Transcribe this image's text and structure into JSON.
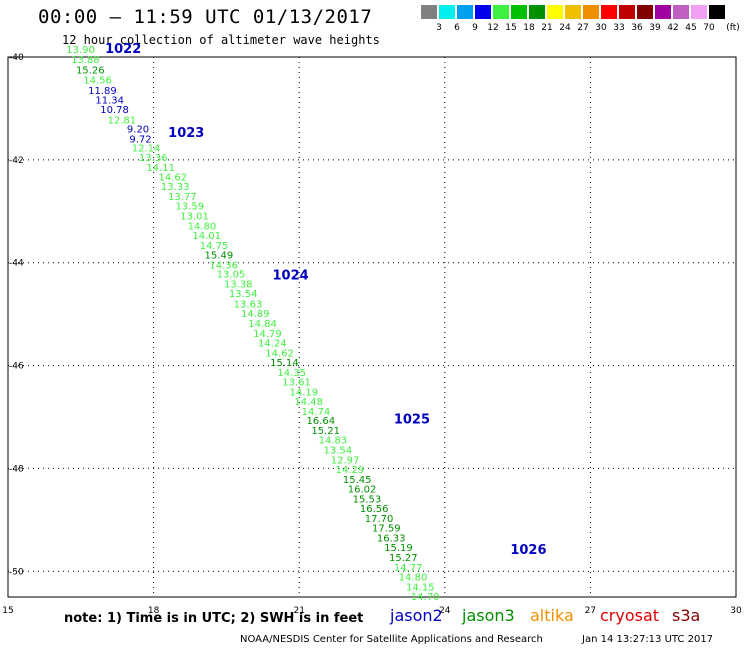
{
  "title": "00:00 – 11:59 UTC 01/13/2017",
  "subtitle": "12 hour collection of altimeter wave heights",
  "colorbar": {
    "unit": "(ft)",
    "ticks": [
      "3",
      "6",
      "9",
      "12",
      "15",
      "18",
      "21",
      "24",
      "27",
      "30",
      "33",
      "36",
      "39",
      "42",
      "45",
      "70"
    ],
    "colors": [
      "#808080",
      "#00f0f0",
      "#00a0f0",
      "#0000f0",
      "#40f040",
      "#00c000",
      "#009000",
      "#ffff00",
      "#f0c000",
      "#f09000",
      "#ff0000",
      "#c00000",
      "#800000",
      "#a000a0",
      "#c060c0",
      "#f0a0f0",
      "#000000"
    ]
  },
  "axes": {
    "x_ticks": [
      "15",
      "18",
      "21",
      "24",
      "27",
      "30"
    ],
    "y_ticks": [
      "-40",
      "-42",
      "-44",
      "-46",
      "-48",
      "-50"
    ]
  },
  "track_labels": [
    {
      "text": "1022",
      "lon": 17.0,
      "lat": -39.92
    },
    {
      "text": "1023",
      "lon": 18.3,
      "lat": -41.56
    },
    {
      "text": "1024",
      "lon": 20.45,
      "lat": -44.33
    },
    {
      "text": "1025",
      "lon": 22.95,
      "lat": -47.13
    },
    {
      "text": "1026",
      "lon": 25.35,
      "lat": -49.66
    }
  ],
  "measurements": [
    {
      "v": "13.90",
      "sat": "jason3",
      "lon": 16.2,
      "lat": -39.92
    },
    {
      "v": "13.88",
      "sat": "jason3",
      "lon": 16.3,
      "lat": -40.12
    },
    {
      "v": "15.26",
      "sat": "jason3",
      "lon": 16.4,
      "lat": -40.32
    },
    {
      "v": "14.56",
      "sat": "jason3",
      "lon": 16.55,
      "lat": -40.52
    },
    {
      "v": "11.89",
      "sat": "jason2",
      "lon": 16.65,
      "lat": -40.72
    },
    {
      "v": "11.34",
      "sat": "jason2",
      "lon": 16.8,
      "lat": -40.9
    },
    {
      "v": "10.78",
      "sat": "jason2",
      "lon": 16.9,
      "lat": -41.09
    },
    {
      "v": "12.81",
      "sat": "jason3",
      "lon": 17.05,
      "lat": -41.29
    },
    {
      "v": "9.20",
      "sat": "jason2",
      "lon": 17.45,
      "lat": -41.47
    },
    {
      "v": "9.72",
      "sat": "jason2",
      "lon": 17.5,
      "lat": -41.66
    },
    {
      "v": "12.14",
      "sat": "jason3",
      "lon": 17.55,
      "lat": -41.84
    },
    {
      "v": "13.36",
      "sat": "jason3",
      "lon": 17.7,
      "lat": -42.02
    },
    {
      "v": "14.11",
      "sat": "jason3",
      "lon": 17.85,
      "lat": -42.22
    },
    {
      "v": "14.62",
      "sat": "jason3",
      "lon": 18.1,
      "lat": -42.4
    },
    {
      "v": "13.33",
      "sat": "jason3",
      "lon": 18.15,
      "lat": -42.59
    },
    {
      "v": "13.77",
      "sat": "jason3",
      "lon": 18.3,
      "lat": -42.78
    },
    {
      "v": "13.59",
      "sat": "jason3",
      "lon": 18.45,
      "lat": -42.97
    },
    {
      "v": "13.01",
      "sat": "jason3",
      "lon": 18.55,
      "lat": -43.16
    },
    {
      "v": "14.80",
      "sat": "jason3",
      "lon": 18.7,
      "lat": -43.35
    },
    {
      "v": "14.01",
      "sat": "jason3",
      "lon": 18.8,
      "lat": -43.54
    },
    {
      "v": "14.75",
      "sat": "jason3",
      "lon": 18.95,
      "lat": -43.73
    },
    {
      "v": "15.49",
      "sat": "jason3",
      "lon": 19.05,
      "lat": -43.92
    },
    {
      "v": "14.36",
      "sat": "jason3",
      "lon": 19.15,
      "lat": -44.11
    },
    {
      "v": "13.05",
      "sat": "jason3",
      "lon": 19.3,
      "lat": -44.29
    },
    {
      "v": "13.38",
      "sat": "jason3",
      "lon": 19.45,
      "lat": -44.48
    },
    {
      "v": "13.54",
      "sat": "jason3",
      "lon": 19.55,
      "lat": -44.67
    },
    {
      "v": "13.63",
      "sat": "jason3",
      "lon": 19.65,
      "lat": -44.87
    },
    {
      "v": "14.89",
      "sat": "jason3",
      "lon": 19.8,
      "lat": -45.06
    },
    {
      "v": "14.84",
      "sat": "jason3",
      "lon": 19.95,
      "lat": -45.25
    },
    {
      "v": "14.79",
      "sat": "jason3",
      "lon": 20.05,
      "lat": -45.44
    },
    {
      "v": "14.24",
      "sat": "jason3",
      "lon": 20.15,
      "lat": -45.63
    },
    {
      "v": "14.62",
      "sat": "jason3",
      "lon": 20.3,
      "lat": -45.82
    },
    {
      "v": "15.14",
      "sat": "jason3",
      "lon": 20.4,
      "lat": -46.01
    },
    {
      "v": "14.35",
      "sat": "jason3",
      "lon": 20.55,
      "lat": -46.2
    },
    {
      "v": "13.61",
      "sat": "jason3",
      "lon": 20.65,
      "lat": -46.39
    },
    {
      "v": "14.19",
      "sat": "jason3",
      "lon": 20.8,
      "lat": -46.58
    },
    {
      "v": "14.48",
      "sat": "jason3",
      "lon": 20.9,
      "lat": -46.77
    },
    {
      "v": "14.74",
      "sat": "jason3",
      "lon": 21.05,
      "lat": -46.96
    },
    {
      "v": "16.64",
      "sat": "jason3",
      "lon": 21.15,
      "lat": -47.14
    },
    {
      "v": "15.21",
      "sat": "jason3",
      "lon": 21.25,
      "lat": -47.33
    },
    {
      "v": "14.83",
      "sat": "jason3",
      "lon": 21.4,
      "lat": -47.52
    },
    {
      "v": "13.54",
      "sat": "jason3",
      "lon": 21.5,
      "lat": -47.71
    },
    {
      "v": "12.97",
      "sat": "jason3",
      "lon": 21.65,
      "lat": -47.9
    },
    {
      "v": "14.29",
      "sat": "jason3",
      "lon": 21.75,
      "lat": -48.09
    },
    {
      "v": "15.45",
      "sat": "jason3",
      "lon": 21.9,
      "lat": -48.28
    },
    {
      "v": "16.02",
      "sat": "jason3",
      "lon": 22.0,
      "lat": -48.47
    },
    {
      "v": "15.53",
      "sat": "jason3",
      "lon": 22.1,
      "lat": -48.66
    },
    {
      "v": "16.56",
      "sat": "jason3",
      "lon": 22.25,
      "lat": -48.85
    },
    {
      "v": "17.70",
      "sat": "jason3",
      "lon": 22.35,
      "lat": -49.04
    },
    {
      "v": "17.59",
      "sat": "jason3",
      "lon": 22.5,
      "lat": -49.23
    },
    {
      "v": "16.33",
      "sat": "jason3",
      "lon": 22.6,
      "lat": -49.42
    },
    {
      "v": "15.19",
      "sat": "jason3",
      "lon": 22.75,
      "lat": -49.61
    },
    {
      "v": "15.27",
      "sat": "jason3",
      "lon": 22.85,
      "lat": -49.8
    },
    {
      "v": "14.77",
      "sat": "jason3",
      "lon": 22.95,
      "lat": -49.99
    },
    {
      "v": "14.80",
      "sat": "jason3",
      "lon": 23.05,
      "lat": -50.18
    },
    {
      "v": "14.15",
      "sat": "jason3",
      "lon": 23.2,
      "lat": -50.37
    },
    {
      "v": "14.70",
      "sat": "jason3",
      "lon": 23.3,
      "lat": -50.56
    }
  ],
  "note": "note:  1) Time is in UTC;  2) SWH is in feet",
  "satellites": [
    {
      "name": "jason2",
      "color": "#0000c0"
    },
    {
      "name": "jason3",
      "color": "#009000"
    },
    {
      "name": "altika",
      "color": "#f09000"
    },
    {
      "name": "cryosat",
      "color": "#e00000"
    },
    {
      "name": "s3a",
      "color": "#800000"
    }
  ],
  "footer_org": "NOAA/NESDIS Center for Satellite Applications and Research",
  "footer_time": "Jan 14 13:27:13 UTC 2017",
  "colors": {
    "jason2_value": "#0000c0",
    "jason3_value_bright": "#009000",
    "jason3_value_light": "#40f040",
    "track_label": "#0000c0",
    "grid": "#000000"
  }
}
